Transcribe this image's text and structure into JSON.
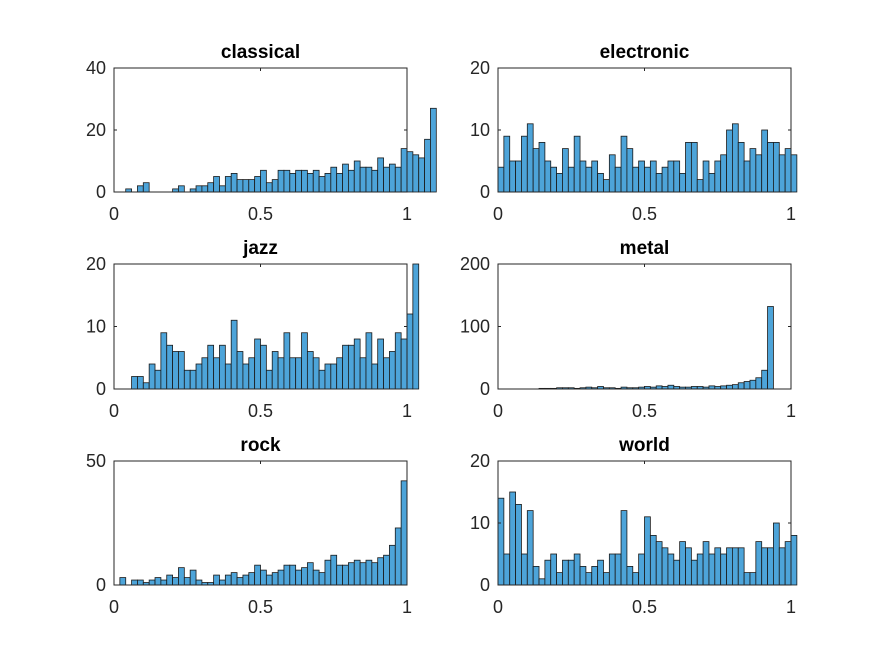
{
  "chart_data": [
    {
      "type": "bar",
      "title": "classical",
      "xlabel": "",
      "ylabel": "",
      "xlim": [
        0,
        1
      ],
      "ylim": [
        0,
        40
      ],
      "xticks": [
        "0",
        "0.5",
        "1"
      ],
      "yticks": [
        "0",
        "20",
        "40"
      ],
      "grid": false,
      "bin_width": 0.02,
      "bar_color": "#4DA4D9",
      "edge_color": "#1A1A1A",
      "values": [
        0,
        0,
        1,
        0,
        2,
        3,
        0,
        0,
        0,
        0,
        1,
        2,
        0,
        1,
        2,
        2,
        3,
        5,
        2,
        5,
        6,
        4,
        4,
        4,
        5,
        7,
        3,
        4,
        7,
        7,
        6,
        7,
        7,
        6,
        7,
        5,
        6,
        8,
        6,
        9,
        7,
        10,
        8,
        8,
        7,
        11,
        8,
        9,
        8,
        14,
        13,
        12,
        11,
        17,
        27
      ]
    },
    {
      "type": "bar",
      "title": "electronic",
      "xlabel": "",
      "ylabel": "",
      "xlim": [
        0,
        1
      ],
      "ylim": [
        0,
        20
      ],
      "xticks": [
        "0",
        "0.5",
        "1"
      ],
      "yticks": [
        "0",
        "10",
        "20"
      ],
      "grid": false,
      "bin_width": 0.02,
      "bar_color": "#4DA4D9",
      "edge_color": "#1A1A1A",
      "values": [
        4,
        9,
        5,
        5,
        9,
        11,
        7,
        8,
        5,
        4,
        3,
        7,
        4,
        9,
        5,
        4,
        5,
        3,
        2,
        6,
        4,
        9,
        7,
        4,
        5,
        4,
        5,
        3,
        4,
        5,
        5,
        3,
        8,
        8,
        2,
        5,
        3,
        5,
        6,
        10,
        11,
        8,
        5,
        7,
        6,
        10,
        8,
        8,
        6,
        7,
        6
      ]
    },
    {
      "type": "bar",
      "title": "jazz",
      "xlabel": "",
      "ylabel": "",
      "xlim": [
        0,
        1
      ],
      "ylim": [
        0,
        20
      ],
      "xticks": [
        "0",
        "0.5",
        "1"
      ],
      "yticks": [
        "0",
        "10",
        "20"
      ],
      "grid": false,
      "bin_width": 0.02,
      "bar_color": "#4DA4D9",
      "edge_color": "#1A1A1A",
      "values": [
        0,
        0,
        0,
        2,
        2,
        1,
        4,
        3,
        9,
        7,
        6,
        6,
        3,
        3,
        4,
        5,
        7,
        5,
        7,
        4,
        11,
        6,
        4,
        5,
        8,
        7,
        3,
        6,
        5,
        9,
        5,
        5,
        9,
        6,
        5,
        3,
        4,
        4,
        5,
        7,
        7,
        8,
        5,
        9,
        4,
        8,
        5,
        6,
        9,
        8,
        12,
        20
      ]
    },
    {
      "type": "bar",
      "title": "metal",
      "xlabel": "",
      "ylabel": "",
      "xlim": [
        0,
        1
      ],
      "ylim": [
        0,
        200
      ],
      "xticks": [
        "0",
        "0.5",
        "1"
      ],
      "yticks": [
        "0",
        "100",
        "200"
      ],
      "grid": false,
      "bin_width": 0.02,
      "bar_color": "#4DA4D9",
      "edge_color": "#1A1A1A",
      "values": [
        0,
        0,
        0,
        0,
        0,
        0,
        0,
        1,
        1,
        1,
        2,
        2,
        2,
        1,
        2,
        3,
        2,
        4,
        2,
        2,
        1,
        3,
        2,
        2,
        3,
        4,
        3,
        5,
        4,
        6,
        4,
        3,
        3,
        4,
        4,
        3,
        5,
        4,
        5,
        6,
        7,
        10,
        12,
        14,
        18,
        30,
        132
      ]
    },
    {
      "type": "bar",
      "title": "rock",
      "xlabel": "",
      "ylabel": "",
      "xlim": [
        0,
        1
      ],
      "ylim": [
        0,
        50
      ],
      "xticks": [
        "0",
        "0.5",
        "1"
      ],
      "yticks": [
        "0",
        "50"
      ],
      "grid": false,
      "bin_width": 0.02,
      "bar_color": "#4DA4D9",
      "edge_color": "#1A1A1A",
      "values": [
        0,
        3,
        0,
        2,
        2,
        1,
        2,
        3,
        2,
        4,
        3,
        7,
        3,
        6,
        2,
        1,
        1,
        4,
        2,
        4,
        5,
        3,
        4,
        5,
        8,
        6,
        4,
        5,
        6,
        8,
        8,
        6,
        7,
        9,
        6,
        5,
        10,
        12,
        8,
        8,
        9,
        10,
        9,
        10,
        9,
        11,
        12,
        16,
        23,
        42
      ]
    },
    {
      "type": "bar",
      "title": "world",
      "xlabel": "",
      "ylabel": "",
      "xlim": [
        0,
        1
      ],
      "ylim": [
        0,
        20
      ],
      "xticks": [
        "0",
        "0.5",
        "1"
      ],
      "yticks": [
        "0",
        "10",
        "20"
      ],
      "grid": false,
      "bin_width": 0.02,
      "bar_color": "#4DA4D9",
      "edge_color": "#1A1A1A",
      "values": [
        14,
        5,
        15,
        13,
        5,
        12,
        3,
        1,
        4,
        5,
        2,
        4,
        4,
        5,
        3,
        2,
        3,
        4,
        2,
        5,
        5,
        12,
        3,
        2,
        5,
        11,
        8,
        7,
        6,
        5,
        4,
        7,
        6,
        4,
        5,
        7,
        5,
        6,
        5,
        6,
        6,
        6,
        2,
        2,
        7,
        6,
        6,
        10,
        6,
        7,
        8
      ]
    }
  ]
}
